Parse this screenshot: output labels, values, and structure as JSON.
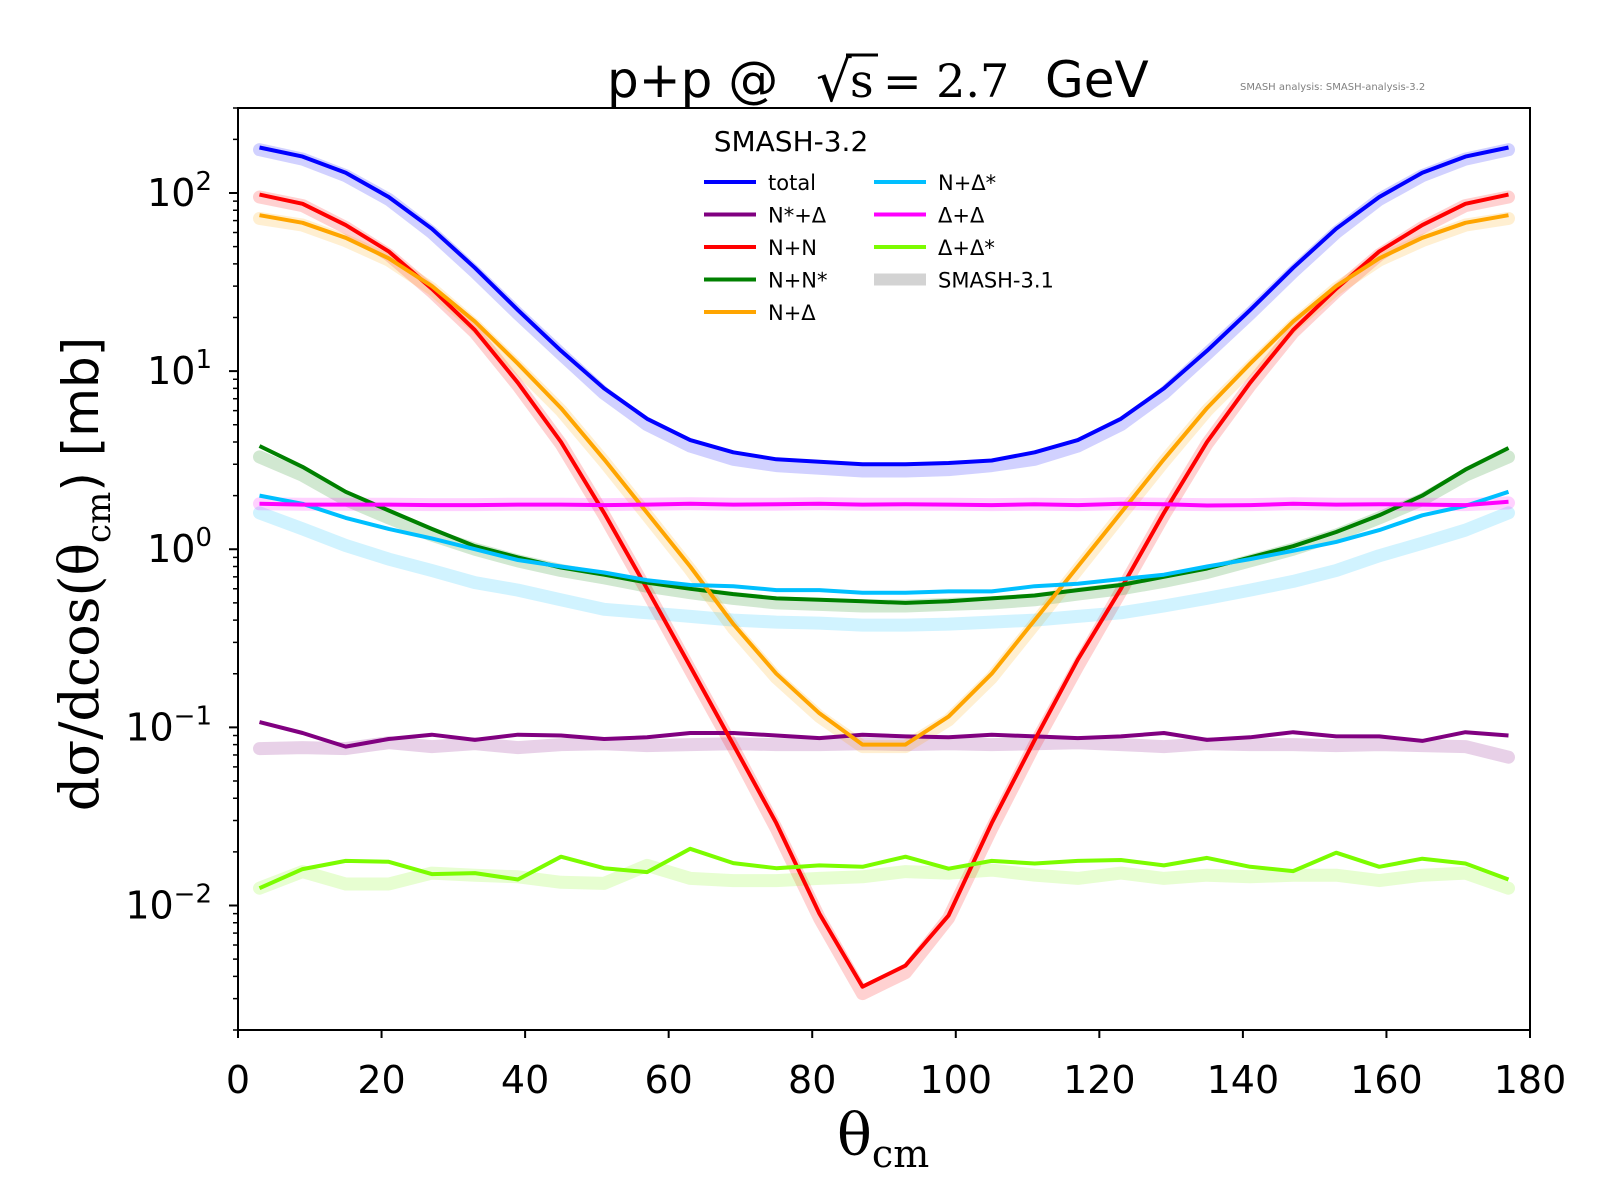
{
  "chart_data": {
    "type": "line",
    "title": {
      "prefix": "p+p @",
      "sqrt_arg": "s",
      "value": "= 2.7",
      "unit": "GeV"
    },
    "watermark": "SMASH analysis: SMASH-analysis-3.2",
    "xlabel": {
      "main": "θ",
      "sub": "cm"
    },
    "ylabel": {
      "main": "dσ/dcos(θ",
      "sub": "cm",
      "suffix": ") [mb]"
    },
    "xlim": [
      0,
      180
    ],
    "ylim": [
      0.002,
      300
    ],
    "yscale": "log",
    "grid": false,
    "x_ticks": [
      "0",
      "20",
      "40",
      "60",
      "80",
      "100",
      "120",
      "140",
      "160",
      "180"
    ],
    "y_ticks": [
      {
        "value": 0.01,
        "base": "10",
        "exp": "−2"
      },
      {
        "value": 0.1,
        "base": "10",
        "exp": "−1"
      },
      {
        "value": 1,
        "base": "10",
        "exp": "0"
      },
      {
        "value": 10,
        "base": "10",
        "exp": "1"
      },
      {
        "value": 100,
        "base": "10",
        "exp": "2"
      }
    ],
    "legend": {
      "title": "SMASH-3.2",
      "position": "top-center",
      "columns": [
        [
          "total",
          "N*+Δ",
          "N+N",
          "N+N*",
          "N+Δ"
        ],
        [
          "N+Δ*",
          "Δ+Δ",
          "Δ+Δ*",
          "SMASH-3.1"
        ]
      ],
      "colors": {
        "total": "#0000ff",
        "N*+Δ": "#800080",
        "N+N": "#ff0000",
        "N+N*": "#008000",
        "N+Δ": "#ffa500",
        "N+Δ*": "#00bfff",
        "Δ+Δ": "#ff00ff",
        "Δ+Δ*": "#7cfc00",
        "SMASH-3.1": "#d3d3d3"
      }
    },
    "x": [
      3,
      9,
      15,
      21,
      27,
      33,
      39,
      45,
      51,
      57,
      63,
      69,
      75,
      81,
      87,
      93,
      99,
      105,
      111,
      117,
      123,
      129,
      135,
      141,
      147,
      153,
      159,
      165,
      171,
      177
    ],
    "series": [
      {
        "name": "total",
        "color": "#0000ff",
        "values": [
          180,
          160,
          130,
          95,
          63,
          38,
          22,
          13,
          8,
          5.4,
          4.1,
          3.5,
          3.2,
          3.1,
          3.0,
          3.0,
          3.05,
          3.15,
          3.5,
          4.1,
          5.4,
          8,
          13,
          22,
          38,
          63,
          95,
          130,
          160,
          180
        ],
        "ref": [
          175,
          155,
          125,
          92,
          60,
          36,
          21,
          12.5,
          7.5,
          5.0,
          3.8,
          3.2,
          2.95,
          2.85,
          2.75,
          2.75,
          2.8,
          2.95,
          3.2,
          3.8,
          5.0,
          7.5,
          12.5,
          21,
          36,
          60,
          92,
          125,
          155,
          175
        ]
      },
      {
        "name": "N*+Δ",
        "color": "#800080",
        "values": [
          0.107,
          0.093,
          0.078,
          0.086,
          0.091,
          0.085,
          0.091,
          0.09,
          0.086,
          0.088,
          0.093,
          0.093,
          0.09,
          0.087,
          0.091,
          0.089,
          0.088,
          0.091,
          0.089,
          0.087,
          0.089,
          0.093,
          0.085,
          0.088,
          0.094,
          0.089,
          0.089,
          0.084,
          0.094,
          0.09
        ],
        "ref": [
          0.076,
          0.077,
          0.076,
          0.082,
          0.078,
          0.081,
          0.077,
          0.08,
          0.081,
          0.079,
          0.08,
          0.081,
          0.08,
          0.08,
          0.081,
          0.08,
          0.081,
          0.08,
          0.081,
          0.082,
          0.08,
          0.078,
          0.081,
          0.08,
          0.08,
          0.079,
          0.08,
          0.079,
          0.078,
          0.068
        ]
      },
      {
        "name": "N+N",
        "color": "#ff0000",
        "values": [
          98,
          87,
          66,
          47,
          29,
          17,
          8.6,
          4.0,
          1.6,
          0.6,
          0.22,
          0.08,
          0.029,
          0.009,
          0.0035,
          0.0046,
          0.0088,
          0.029,
          0.085,
          0.24,
          0.6,
          1.6,
          4.0,
          8.6,
          17,
          29,
          47,
          66,
          87,
          98
        ],
        "ref": [
          95,
          85,
          64,
          45,
          28,
          16.5,
          8.3,
          3.9,
          1.55,
          0.58,
          0.21,
          0.077,
          0.027,
          0.0085,
          0.0032,
          0.0042,
          0.0085,
          0.027,
          0.08,
          0.22,
          0.58,
          1.55,
          3.9,
          8.3,
          16.5,
          28,
          45,
          64,
          85,
          95
        ]
      },
      {
        "name": "N+N*",
        "color": "#008000",
        "values": [
          3.8,
          2.9,
          2.1,
          1.65,
          1.3,
          1.04,
          0.9,
          0.79,
          0.72,
          0.65,
          0.6,
          0.56,
          0.53,
          0.52,
          0.51,
          0.5,
          0.51,
          0.53,
          0.55,
          0.59,
          0.63,
          0.7,
          0.78,
          0.9,
          1.04,
          1.25,
          1.55,
          2.0,
          2.8,
          3.7
        ],
        "ref": [
          3.3,
          2.6,
          1.9,
          1.5,
          1.2,
          1.0,
          0.86,
          0.76,
          0.69,
          0.62,
          0.57,
          0.53,
          0.5,
          0.49,
          0.48,
          0.48,
          0.49,
          0.5,
          0.52,
          0.56,
          0.6,
          0.66,
          0.74,
          0.86,
          1.0,
          1.2,
          1.5,
          1.9,
          2.6,
          3.3
        ]
      },
      {
        "name": "N+Δ",
        "color": "#ffa500",
        "values": [
          75,
          68,
          56,
          43,
          30,
          19,
          11,
          6.2,
          3.2,
          1.6,
          0.8,
          0.38,
          0.2,
          0.12,
          0.08,
          0.08,
          0.115,
          0.2,
          0.4,
          0.8,
          1.6,
          3.2,
          6.2,
          11,
          19,
          30,
          43,
          56,
          68,
          75
        ],
        "ref": [
          72,
          66,
          54,
          42,
          29,
          18,
          10.5,
          6.0,
          3.1,
          1.55,
          0.77,
          0.36,
          0.19,
          0.115,
          0.078,
          0.078,
          0.11,
          0.19,
          0.38,
          0.77,
          1.55,
          3.1,
          6.0,
          10.5,
          18,
          29,
          42,
          54,
          66,
          72
        ]
      },
      {
        "name": "N+Δ*",
        "color": "#00bfff",
        "values": [
          2.0,
          1.8,
          1.5,
          1.3,
          1.15,
          1.0,
          0.87,
          0.8,
          0.74,
          0.67,
          0.63,
          0.62,
          0.59,
          0.59,
          0.57,
          0.57,
          0.58,
          0.58,
          0.62,
          0.64,
          0.68,
          0.72,
          0.8,
          0.88,
          0.98,
          1.1,
          1.28,
          1.55,
          1.75,
          2.1
        ],
        "ref": [
          1.6,
          1.3,
          1.05,
          0.88,
          0.76,
          0.65,
          0.59,
          0.52,
          0.46,
          0.44,
          0.42,
          0.4,
          0.39,
          0.385,
          0.375,
          0.375,
          0.38,
          0.39,
          0.4,
          0.42,
          0.44,
          0.48,
          0.53,
          0.59,
          0.66,
          0.76,
          0.92,
          1.08,
          1.28,
          1.6
        ]
      },
      {
        "name": "Δ+Δ",
        "color": "#ff00ff",
        "values": [
          1.8,
          1.78,
          1.78,
          1.78,
          1.77,
          1.77,
          1.78,
          1.78,
          1.77,
          1.78,
          1.8,
          1.78,
          1.79,
          1.8,
          1.78,
          1.79,
          1.78,
          1.77,
          1.79,
          1.77,
          1.8,
          1.79,
          1.76,
          1.77,
          1.8,
          1.78,
          1.79,
          1.78,
          1.77,
          1.85
        ],
        "ref": [
          1.8,
          1.79,
          1.79,
          1.79,
          1.78,
          1.78,
          1.79,
          1.79,
          1.78,
          1.79,
          1.8,
          1.79,
          1.79,
          1.8,
          1.79,
          1.79,
          1.79,
          1.78,
          1.79,
          1.78,
          1.8,
          1.79,
          1.78,
          1.78,
          1.8,
          1.79,
          1.79,
          1.79,
          1.78,
          1.82
        ]
      },
      {
        "name": "Δ+Δ*",
        "color": "#7cfc00",
        "values": [
          0.0125,
          0.016,
          0.0178,
          0.0176,
          0.015,
          0.0152,
          0.014,
          0.0188,
          0.0162,
          0.0154,
          0.0208,
          0.0173,
          0.0162,
          0.0168,
          0.0165,
          0.0188,
          0.0161,
          0.0178,
          0.0172,
          0.0178,
          0.018,
          0.0168,
          0.0185,
          0.0165,
          0.0156,
          0.0198,
          0.0165,
          0.0183,
          0.0172,
          0.014
        ],
        "ref": [
          0.0125,
          0.0155,
          0.0132,
          0.0132,
          0.0152,
          0.0148,
          0.0145,
          0.0135,
          0.0133,
          0.0168,
          0.0142,
          0.0138,
          0.0138,
          0.0142,
          0.0145,
          0.0155,
          0.0152,
          0.0158,
          0.0148,
          0.0142,
          0.0152,
          0.0142,
          0.0148,
          0.0145,
          0.0148,
          0.0148,
          0.0138,
          0.0148,
          0.0152,
          0.0125
        ]
      }
    ]
  }
}
